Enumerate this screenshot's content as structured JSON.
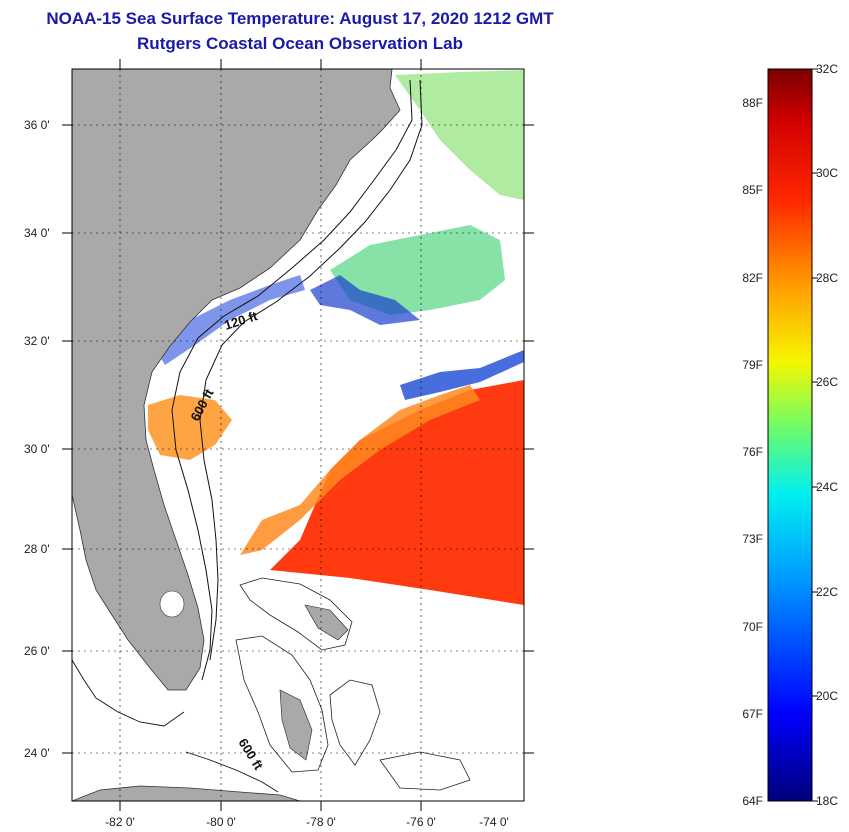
{
  "header": {
    "title": "NOAA-15 Sea Surface Temperature:  August 17, 2020 1212 GMT",
    "subtitle": "Rutgers Coastal Ocean Observation Lab"
  },
  "map": {
    "latitude_labels": [
      "36 0'",
      "34 0'",
      "32 0'",
      "30 0'",
      "28 0'",
      "26 0'",
      "24 0'"
    ],
    "longitude_labels": [
      "-82 0'",
      "-80 0'",
      "-78 0'",
      "-76 0'",
      "-74 0'"
    ],
    "contour_labels": [
      "120 ft",
      "600 ft",
      "600 ft"
    ],
    "colors": {
      "land": "#a9a9a9",
      "ocean_nodata": "#ffffff"
    }
  },
  "colorbar": {
    "fahrenheit_labels": [
      "88F",
      "85F",
      "82F",
      "79F",
      "76F",
      "73F",
      "70F",
      "67F",
      "64F"
    ],
    "celsius_labels": [
      "32C",
      "30C",
      "28C",
      "26C",
      "24C",
      "22C",
      "20C",
      "18C"
    ]
  }
}
